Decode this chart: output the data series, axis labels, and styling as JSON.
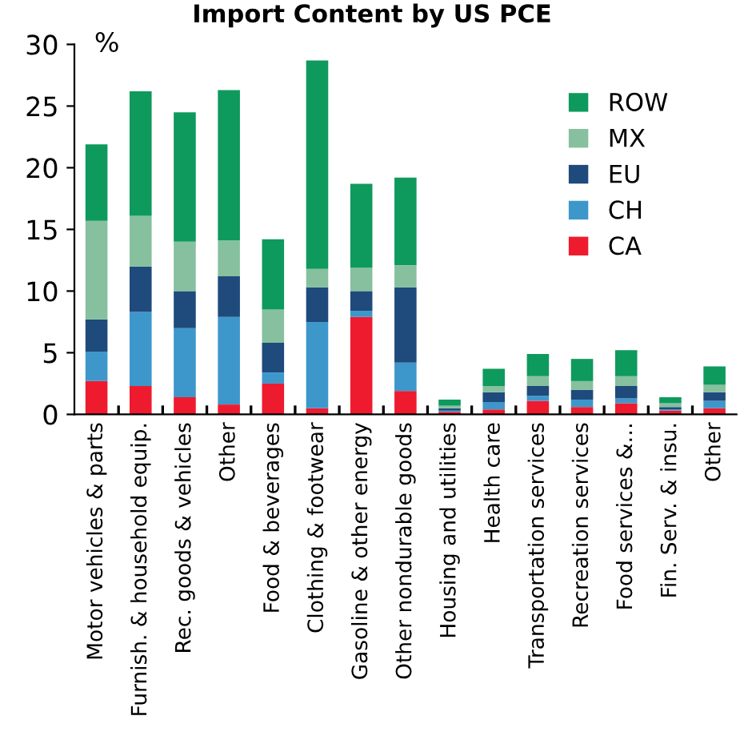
{
  "chart_data": {
    "type": "bar",
    "stacked": true,
    "title": "Import Content by US PCE",
    "ylabel": "%",
    "categories": [
      "Motor vehicles & parts",
      "Furnish. & household equip.",
      "Rec. goods & vehicles",
      "Other",
      "Food & beverages",
      "Clothing & footwear",
      "Gasoline & other energy",
      "Other nondurable goods",
      "Housing and utilities",
      "Health care",
      "Transportation services",
      "Recreation services",
      "Food services &…",
      "Fin. Serv. & insu.",
      "Other"
    ],
    "series": [
      {
        "name": "CA",
        "color": "#ee1b2e",
        "values": [
          2.7,
          2.3,
          1.4,
          0.8,
          2.5,
          0.5,
          7.9,
          1.9,
          0.2,
          0.4,
          1.1,
          0.6,
          0.9,
          0.3,
          0.5
        ]
      },
      {
        "name": "CH",
        "color": "#3d97cb",
        "values": [
          2.4,
          6.0,
          5.6,
          7.1,
          0.9,
          7.0,
          0.5,
          2.3,
          0.1,
          0.6,
          0.4,
          0.6,
          0.4,
          0.1,
          0.6
        ]
      },
      {
        "name": "EU",
        "color": "#1f4a7c",
        "values": [
          2.6,
          3.7,
          3.0,
          3.3,
          2.4,
          2.8,
          1.6,
          6.1,
          0.2,
          0.8,
          0.8,
          0.8,
          1.0,
          0.2,
          0.7
        ]
      },
      {
        "name": "MX",
        "color": "#86c09e",
        "values": [
          8.0,
          4.1,
          4.0,
          2.9,
          2.7,
          1.5,
          1.9,
          1.8,
          0.2,
          0.5,
          0.8,
          0.7,
          0.8,
          0.3,
          0.6
        ]
      },
      {
        "name": "ROW",
        "color": "#0e9a5c",
        "values": [
          6.2,
          10.1,
          10.5,
          12.2,
          5.7,
          16.9,
          6.8,
          7.1,
          0.5,
          1.4,
          1.8,
          1.8,
          2.1,
          0.5,
          1.5
        ]
      }
    ],
    "ylim": [
      0,
      30
    ],
    "yticks": [
      0,
      5,
      10,
      15,
      20,
      25,
      30
    ],
    "grid": false,
    "legend": "top right"
  }
}
